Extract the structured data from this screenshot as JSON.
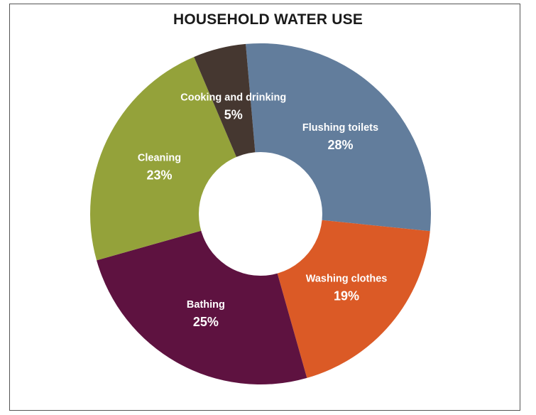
{
  "chart_data": {
    "type": "pie",
    "title": "HOUSEHOLD WATER USE",
    "donut": true,
    "categories": [
      "Flushing toilets",
      "Washing clothes",
      "Bathing",
      "Cleaning",
      "Cooking and drinking"
    ],
    "values": [
      28,
      19,
      25,
      23,
      5
    ],
    "value_labels": [
      "28%",
      "19%",
      "25%",
      "23%",
      "5%"
    ],
    "colors": [
      "#627d9c",
      "#db5a26",
      "#5e1240",
      "#94a23a",
      "#453730"
    ],
    "legend": "none"
  }
}
